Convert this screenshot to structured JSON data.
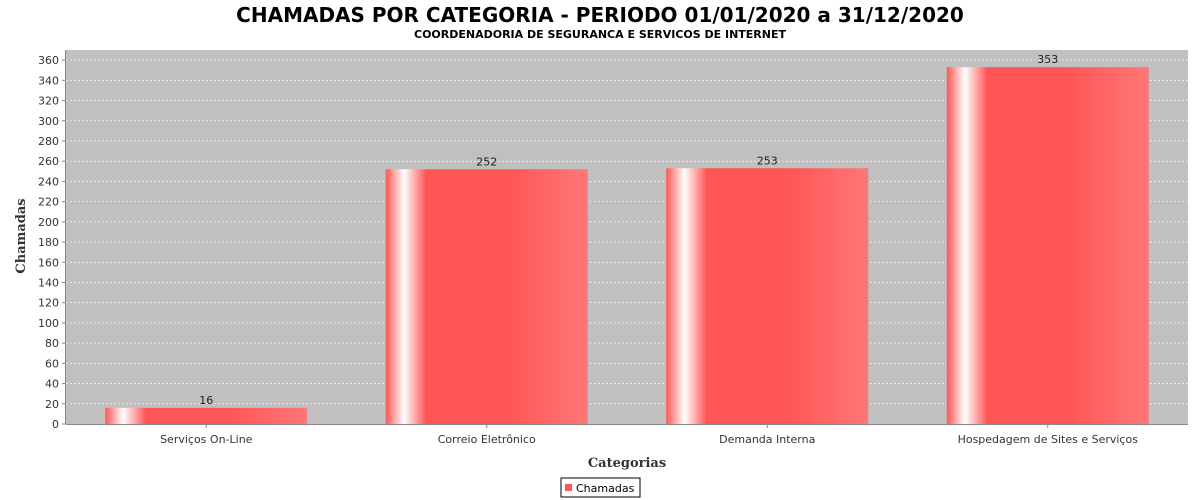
{
  "chart_data": {
    "type": "bar",
    "title": "CHAMADAS POR CATEGORIA - PERIODO 01/01/2020 a 31/12/2020",
    "subtitle": "COORDENADORIA DE SEGURANCA E SERVICOS DE INTERNET",
    "xlabel": "Categorias",
    "ylabel": "Chamadas",
    "categories": [
      "Serviços On-Line",
      "Correio Eletrônico",
      "Demanda Interna",
      "Hospedagem de Sites e Serviços"
    ],
    "series": [
      {
        "name": "Chamadas",
        "values": [
          16,
          252,
          253,
          353
        ],
        "color": "#ff5555"
      }
    ],
    "ylim": [
      0,
      370
    ],
    "yticks": [
      0,
      20,
      40,
      60,
      80,
      100,
      120,
      140,
      160,
      180,
      200,
      220,
      240,
      260,
      280,
      300,
      320,
      340,
      360
    ],
    "grid": true,
    "legend_position": "bottom",
    "plot_background": "#c0c0c0"
  }
}
